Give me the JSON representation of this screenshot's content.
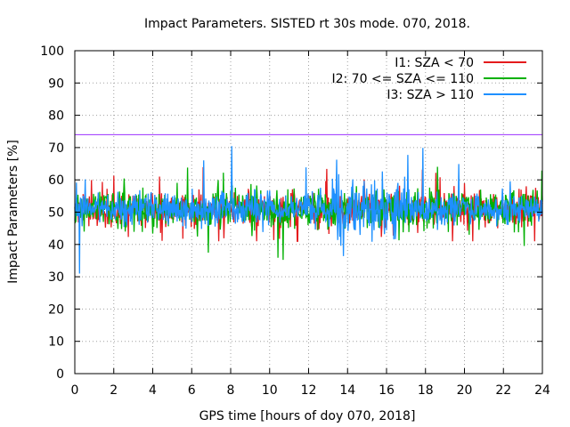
{
  "chart_data": {
    "type": "line",
    "title": "Impact Parameters. SISTED rt 30s mode. 070, 2018.",
    "xlabel": "GPS time [hours of doy 070, 2018]",
    "ylabel": "Impact Parameters [%]",
    "xlim": [
      0,
      24
    ],
    "ylim": [
      0,
      100
    ],
    "xticks": [
      0,
      2,
      4,
      6,
      8,
      10,
      12,
      14,
      16,
      18,
      20,
      22,
      24
    ],
    "yticks": [
      0,
      10,
      20,
      30,
      40,
      50,
      60,
      70,
      80,
      90,
      100
    ],
    "grid": true,
    "legend_position": "top-right",
    "threshold": {
      "value": 74,
      "color": "#9b30ff"
    },
    "series": [
      {
        "name": "I1: SZA < 70",
        "color": "#e41a1c",
        "mean": 51,
        "typical_range": [
          44,
          58
        ],
        "extreme_range": [
          41,
          64
        ]
      },
      {
        "name": "I2: 70 <= SZA <= 110",
        "color": "#00b000",
        "mean": 51,
        "typical_range": [
          43,
          59
        ],
        "extreme_range": [
          32,
          67
        ]
      },
      {
        "name": "I3: SZA > 110",
        "color": "#1e90ff",
        "mean": 51,
        "typical_range": [
          44,
          57
        ],
        "extreme_range": [
          31,
          72
        ]
      }
    ]
  }
}
